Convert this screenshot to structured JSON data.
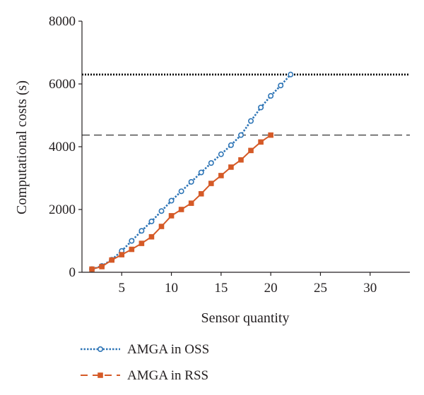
{
  "chart_data": {
    "type": "line",
    "xlabel": "Sensor quantity",
    "ylabel": "Computational costs (s)",
    "xlim": [
      1,
      34
    ],
    "ylim": [
      0,
      8000
    ],
    "x_ticks": [
      5,
      10,
      15,
      20,
      25,
      30
    ],
    "y_ticks": [
      0,
      2000,
      4000,
      6000,
      8000
    ],
    "grid": false,
    "legend_position": "bottom-left",
    "reference_lines": [
      {
        "y": 6300,
        "style": "dotted",
        "color": "#000000"
      },
      {
        "y": 4370,
        "style": "dashed",
        "color": "#333333"
      }
    ],
    "series": [
      {
        "name": "AMGA in OSS",
        "color": "#2e75b6",
        "marker": "circle",
        "line": "dotted",
        "x": [
          2,
          3,
          4,
          5,
          6,
          7,
          8,
          9,
          10,
          11,
          12,
          13,
          14,
          15,
          16,
          17,
          18,
          19,
          20,
          21,
          22
        ],
        "values": [
          100,
          200,
          400,
          680,
          1000,
          1320,
          1620,
          1950,
          2280,
          2580,
          2880,
          3180,
          3480,
          3760,
          4050,
          4370,
          4820,
          5250,
          5620,
          5950,
          6300
        ]
      },
      {
        "name": "AMGA in RSS",
        "color": "#d55a27",
        "marker": "square",
        "line": "dashed",
        "x": [
          2,
          3,
          4,
          5,
          6,
          7,
          8,
          9,
          10,
          11,
          12,
          13,
          14,
          15,
          16,
          17,
          18,
          19,
          20
        ],
        "values": [
          100,
          180,
          390,
          560,
          730,
          920,
          1130,
          1460,
          1800,
          2000,
          2200,
          2500,
          2830,
          3080,
          3350,
          3580,
          3880,
          4150,
          4370
        ]
      }
    ]
  }
}
